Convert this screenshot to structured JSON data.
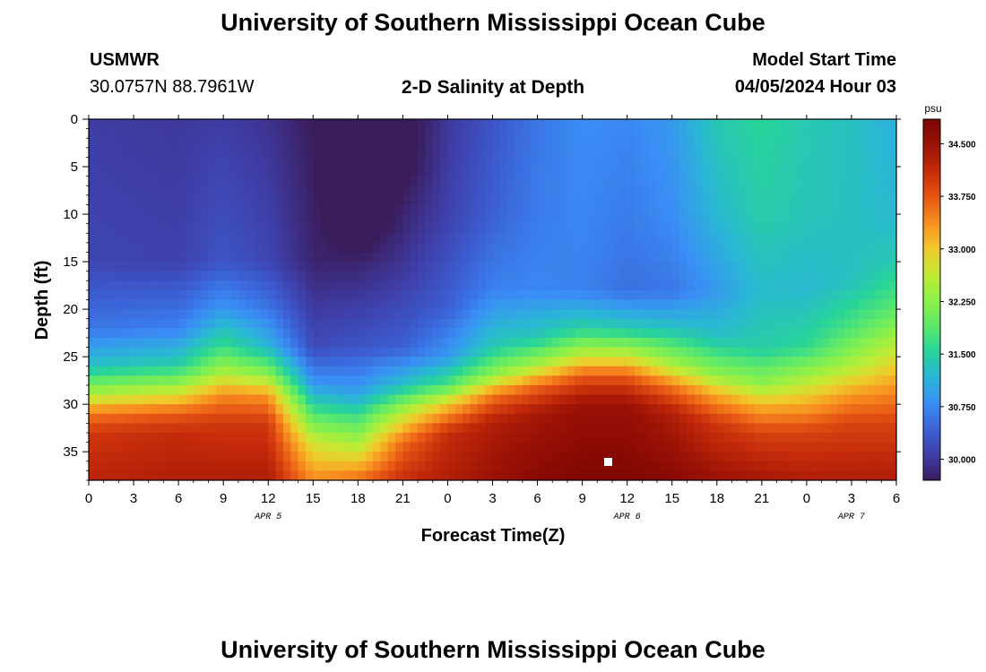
{
  "header": {
    "title": "University of Southern Mississippi Ocean Cube",
    "station": "USMWR",
    "coords": "30.0757N  88.7961W",
    "center_title": "2-D Salinity at Depth",
    "model_start_label": "Model Start Time",
    "model_start_value": "04/05/2024 Hour 03"
  },
  "footer": {
    "title": "University of Southern Mississippi Ocean Cube"
  },
  "chart_data": {
    "type": "heatmap",
    "xlabel": "Forecast Time(Z)",
    "ylabel": "Depth (ft)",
    "x_tick_labels": [
      "0",
      "3",
      "6",
      "9",
      "12",
      "15",
      "18",
      "21",
      "0",
      "3",
      "6",
      "9",
      "12",
      "15",
      "18",
      "21",
      "0",
      "3",
      "6"
    ],
    "x_range_hours": [
      0,
      54
    ],
    "date_labels": [
      {
        "text": "APR 5",
        "hour": 12
      },
      {
        "text": "APR 6",
        "hour": 36
      },
      {
        "text": "APR 7",
        "hour": 51
      }
    ],
    "y_ticks": [
      "0",
      "5",
      "10",
      "15",
      "20",
      "25",
      "30",
      "35"
    ],
    "ylim": [
      0,
      38
    ],
    "y_inverted": true,
    "colorbar": {
      "unit": "psu",
      "range": [
        29.7,
        34.85
      ],
      "tick_labels": [
        "34.500",
        "33.750",
        "33.000",
        "32.250",
        "31.500",
        "30.750",
        "30.000"
      ]
    },
    "salinity_profiles": [
      {
        "hour": 0,
        "depth": [
          0,
          15,
          22,
          26,
          29,
          31,
          33,
          38
        ],
        "value": [
          30.05,
          30.15,
          30.6,
          31.3,
          32.5,
          33.5,
          34.0,
          34.2
        ]
      },
      {
        "hour": 6,
        "depth": [
          0,
          15,
          22,
          26,
          29,
          31,
          33,
          38
        ],
        "value": [
          30.0,
          30.1,
          30.7,
          31.5,
          32.8,
          33.7,
          34.1,
          34.3
        ]
      },
      {
        "hour": 9,
        "depth": [
          0,
          15,
          20,
          24,
          27,
          29,
          32,
          38
        ],
        "value": [
          30.05,
          30.3,
          30.9,
          31.7,
          32.6,
          33.4,
          34.0,
          34.3
        ]
      },
      {
        "hour": 12,
        "depth": [
          0,
          15,
          20,
          24,
          27,
          29,
          32,
          38
        ],
        "value": [
          29.95,
          30.15,
          30.6,
          31.2,
          32.3,
          33.3,
          34.0,
          34.3
        ]
      },
      {
        "hour": 15,
        "depth": [
          0,
          15,
          24,
          28,
          31,
          34,
          38
        ],
        "value": [
          29.7,
          29.8,
          30.2,
          30.9,
          31.8,
          32.7,
          33.4
        ]
      },
      {
        "hour": 18,
        "depth": [
          0,
          5,
          10,
          16,
          24,
          29,
          32,
          35,
          38
        ],
        "value": [
          29.3,
          29.2,
          29.4,
          29.85,
          30.3,
          31.0,
          31.9,
          32.7,
          33.6
        ]
      },
      {
        "hour": 21,
        "depth": [
          0,
          5,
          10,
          16,
          24,
          28,
          31,
          34,
          38
        ],
        "value": [
          29.55,
          29.6,
          29.8,
          30.0,
          30.4,
          31.3,
          32.6,
          33.6,
          34.1
        ]
      },
      {
        "hour": 24,
        "depth": [
          0,
          10,
          20,
          25,
          28,
          30,
          33,
          38
        ],
        "value": [
          30.0,
          30.1,
          30.4,
          30.9,
          31.8,
          33.0,
          34.1,
          34.3
        ]
      },
      {
        "hour": 27,
        "depth": [
          0,
          10,
          18,
          24,
          27,
          29,
          32,
          38
        ],
        "value": [
          30.3,
          30.4,
          30.7,
          31.4,
          32.3,
          33.5,
          34.3,
          34.5
        ]
      },
      {
        "hour": 30,
        "depth": [
          0,
          10,
          18,
          23,
          26,
          28,
          31,
          38
        ],
        "value": [
          30.6,
          30.65,
          30.75,
          31.4,
          32.5,
          33.6,
          34.4,
          34.7
        ]
      },
      {
        "hour": 33,
        "depth": [
          0,
          10,
          18,
          22,
          25,
          27,
          30,
          38
        ],
        "value": [
          30.8,
          30.75,
          30.7,
          31.5,
          32.7,
          33.7,
          34.5,
          34.8
        ]
      },
      {
        "hour": 36,
        "depth": [
          0,
          10,
          18,
          22,
          25,
          27,
          30,
          38
        ],
        "value": [
          30.75,
          30.65,
          30.55,
          31.4,
          32.7,
          33.7,
          34.5,
          34.8
        ]
      },
      {
        "hour": 39,
        "depth": [
          0,
          10,
          18,
          22,
          26,
          28,
          31,
          38
        ],
        "value": [
          30.9,
          30.8,
          30.6,
          31.3,
          32.5,
          33.5,
          34.3,
          34.7
        ]
      },
      {
        "hour": 42,
        "depth": [
          0,
          10,
          18,
          23,
          27,
          29,
          32,
          38
        ],
        "value": [
          31.4,
          31.2,
          30.9,
          31.3,
          32.3,
          33.2,
          34.0,
          34.5
        ]
      },
      {
        "hour": 45,
        "depth": [
          0,
          10,
          18,
          24,
          28,
          30,
          33,
          38
        ],
        "value": [
          31.55,
          31.45,
          31.25,
          31.45,
          32.3,
          33.1,
          33.9,
          34.4
        ]
      },
      {
        "hour": 48,
        "depth": [
          0,
          10,
          18,
          24,
          27,
          30,
          33,
          38
        ],
        "value": [
          31.4,
          31.35,
          31.2,
          31.6,
          32.4,
          33.2,
          33.9,
          34.3
        ]
      },
      {
        "hour": 51,
        "depth": [
          0,
          10,
          17,
          22,
          26,
          29,
          32,
          38
        ],
        "value": [
          31.3,
          31.3,
          31.3,
          31.8,
          32.5,
          33.3,
          33.9,
          34.3
        ]
      },
      {
        "hour": 54,
        "depth": [
          0,
          10,
          15,
          20,
          24,
          28,
          32,
          38
        ],
        "value": [
          31.1,
          31.2,
          31.4,
          31.9,
          32.6,
          33.3,
          33.9,
          34.3
        ]
      }
    ]
  },
  "colors": {
    "scale": [
      "#3a1c5a",
      "#3f3ea8",
      "#3b63d8",
      "#3a8ef5",
      "#2ab6d6",
      "#27d39a",
      "#5ee96a",
      "#8ef048",
      "#c4ea34",
      "#f2c72a",
      "#f88d1f",
      "#e65414",
      "#c42a0a",
      "#9b1205",
      "#7a0403"
    ]
  }
}
